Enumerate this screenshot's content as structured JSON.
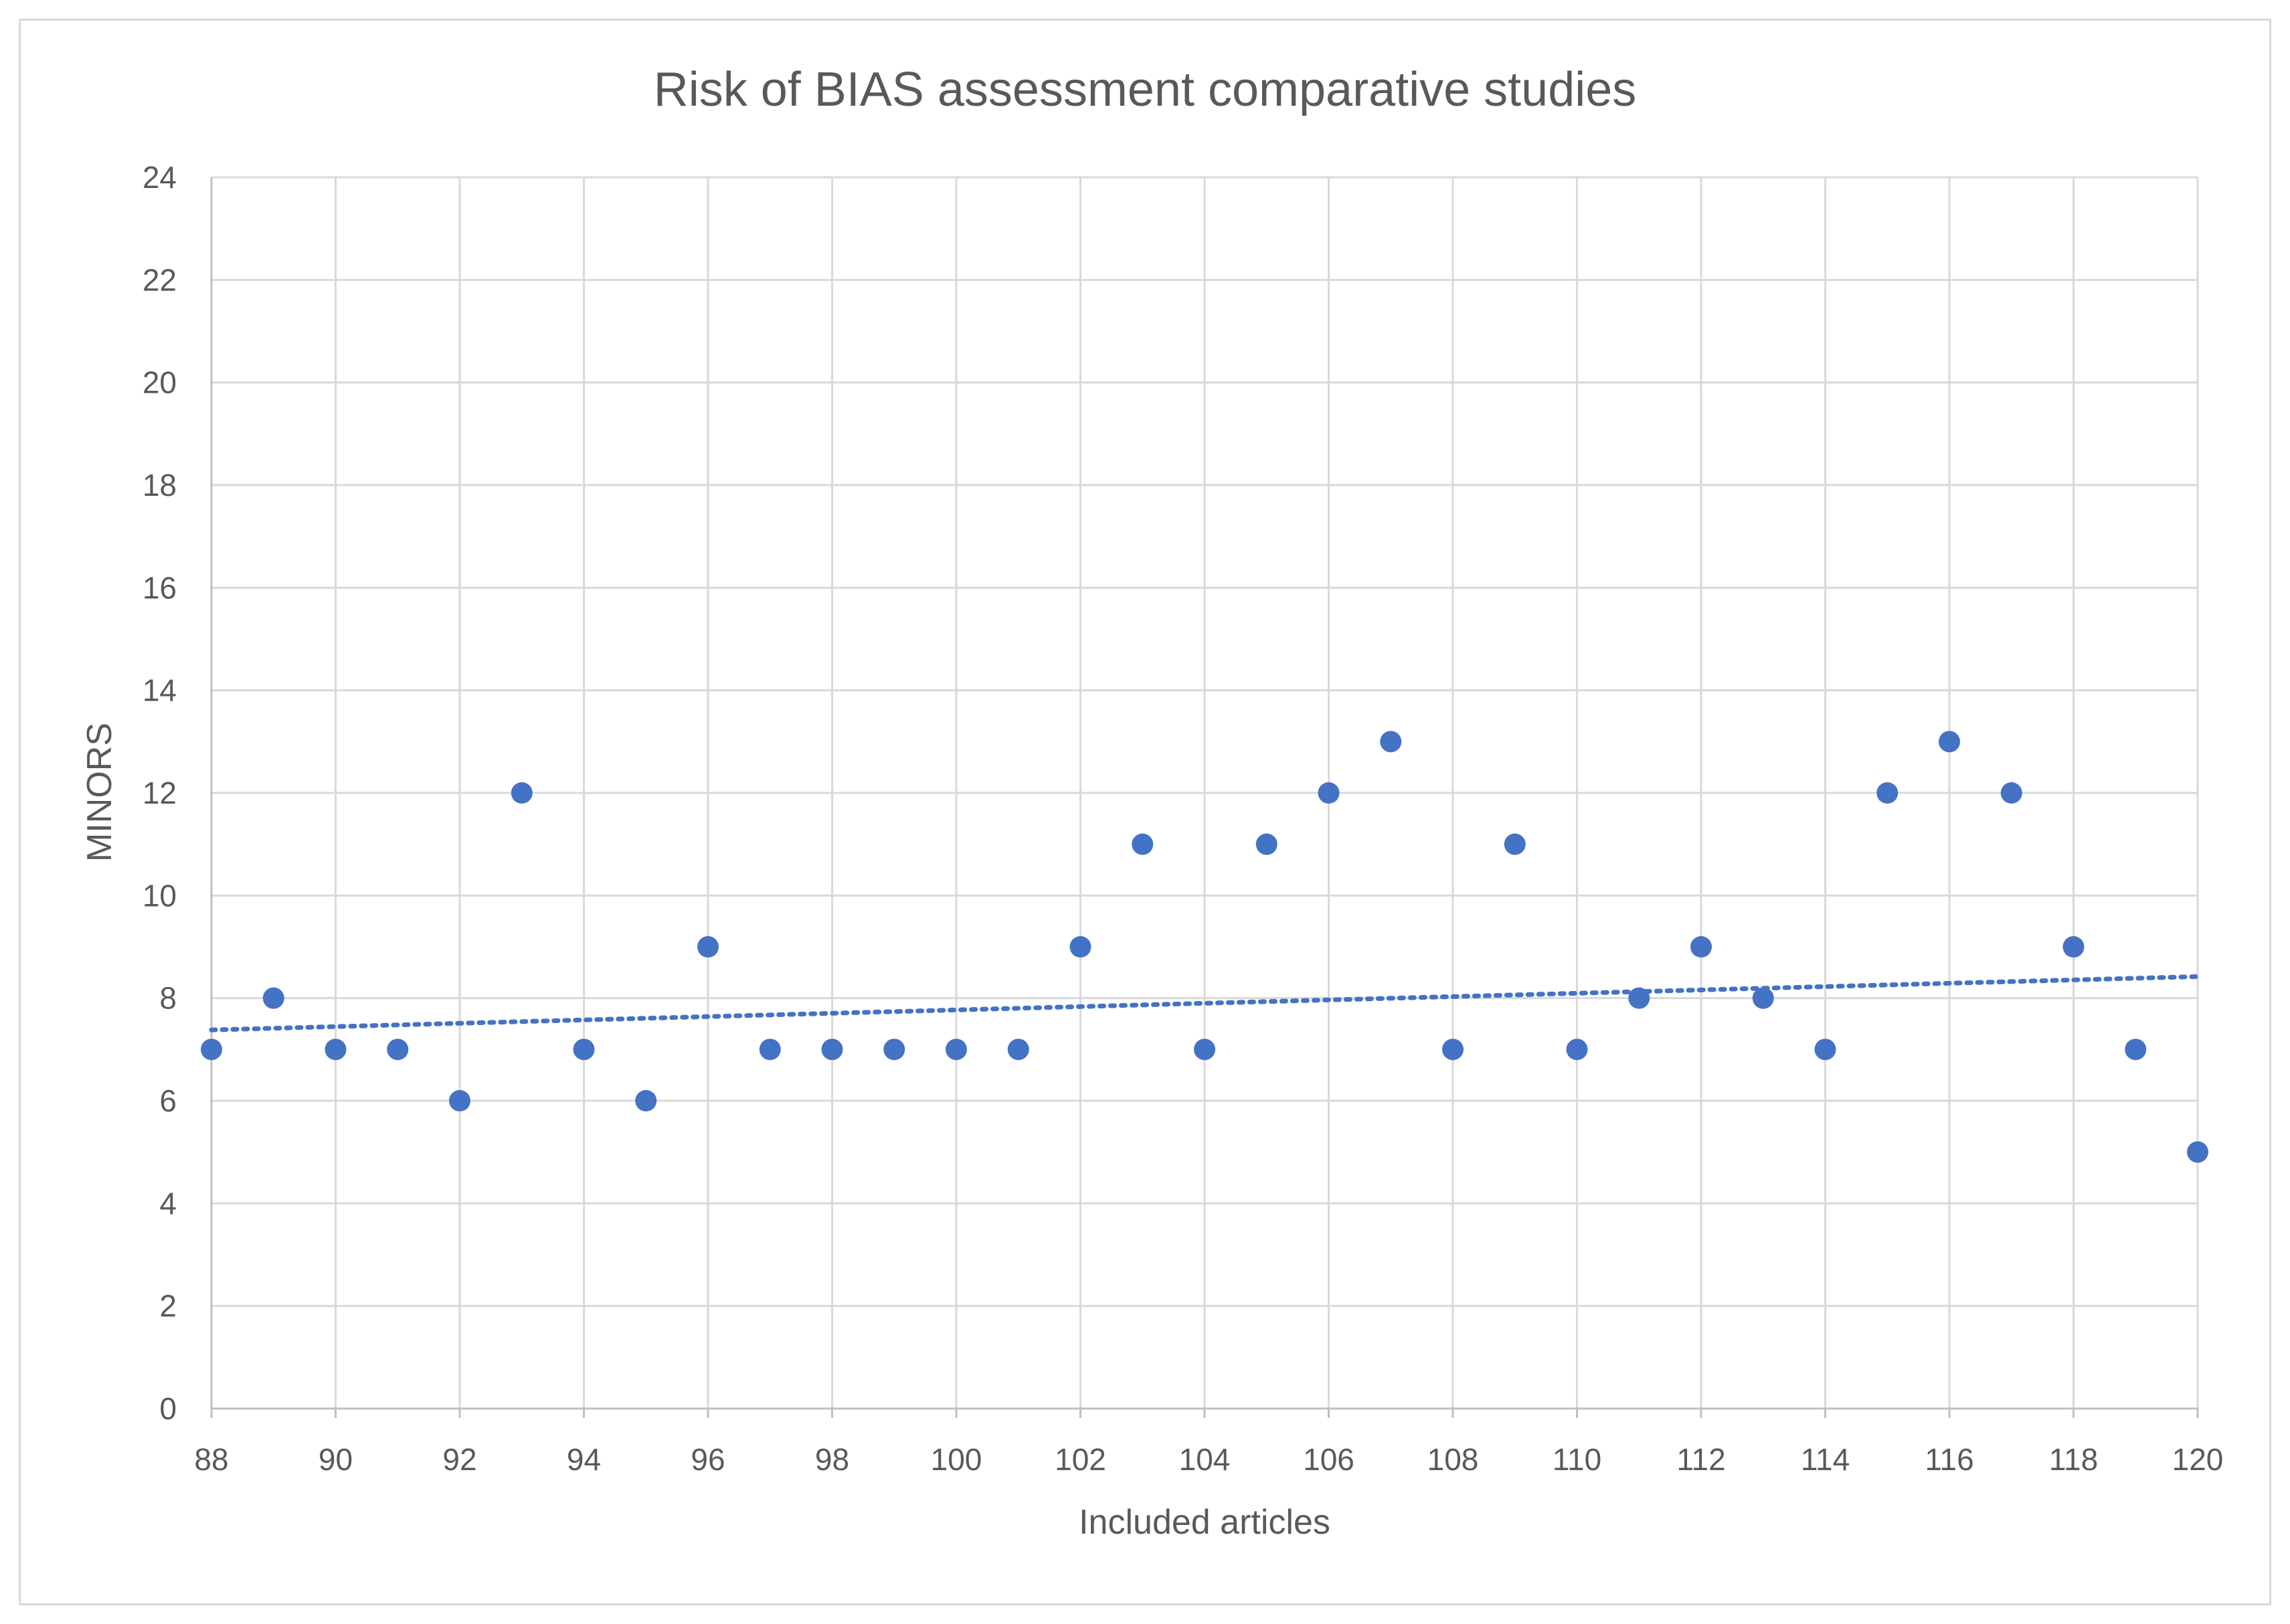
{
  "chart_data": {
    "type": "scatter",
    "title": "Risk of BIAS assessment comparative studies",
    "xlabel": "Included articles",
    "ylabel": "MINORS",
    "xlim": [
      88,
      120
    ],
    "ylim": [
      0,
      24
    ],
    "x_ticks": [
      88,
      90,
      92,
      94,
      96,
      98,
      100,
      102,
      104,
      106,
      108,
      110,
      112,
      114,
      116,
      118,
      120
    ],
    "y_ticks": [
      0,
      2,
      4,
      6,
      8,
      10,
      12,
      14,
      16,
      18,
      20,
      22,
      24
    ],
    "grid": true,
    "series": [
      {
        "name": "MINORS",
        "color": "#4472c4",
        "x": [
          88,
          89,
          90,
          91,
          92,
          93,
          94,
          95,
          96,
          97,
          98,
          99,
          100,
          101,
          102,
          103,
          104,
          105,
          106,
          107,
          108,
          109,
          110,
          111,
          112,
          113,
          114,
          115,
          116,
          117,
          118,
          119,
          120
        ],
        "y": [
          7,
          8,
          7,
          7,
          6,
          12,
          7,
          6,
          9,
          7,
          7,
          7,
          7,
          7,
          9,
          11,
          7,
          11,
          12,
          13,
          7,
          11,
          7,
          8,
          9,
          8,
          7,
          12,
          13,
          12,
          9,
          7,
          5
        ]
      }
    ],
    "trendline": {
      "type": "linear",
      "style": "dotted",
      "color": "#4472c4",
      "x": [
        88,
        120
      ],
      "y": [
        7.38,
        8.42
      ]
    }
  }
}
